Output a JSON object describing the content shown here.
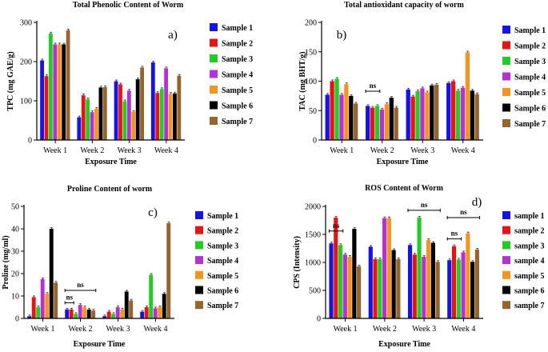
{
  "chart_data": [
    {
      "type": "bar",
      "panel": "a)",
      "title": "Total Phenolic Content of Worm",
      "xlabel": "Exposure Time",
      "ylabel": "TPC (mg GAE/g)",
      "ylim": [
        0,
        300
      ],
      "yticks": [
        "0",
        "100",
        "200",
        "300"
      ],
      "categories": [
        "Week 1",
        "Week 2",
        "Week 3",
        "Week 4"
      ],
      "series": [
        {
          "name": "Sample 1",
          "color": "#1414e6",
          "values": [
            203,
            58,
            150,
            198
          ]
        },
        {
          "name": "Sample 2",
          "color": "#e61414",
          "values": [
            163,
            114,
            142,
            120
          ]
        },
        {
          "name": "Sample 3",
          "color": "#22cc22",
          "values": [
            272,
            104,
            99,
            130
          ]
        },
        {
          "name": "Sample 4",
          "color": "#b432d2",
          "values": [
            244,
            71,
            126,
            183
          ]
        },
        {
          "name": "Sample 5",
          "color": "#f5941e",
          "values": [
            244,
            80,
            72,
            118
          ]
        },
        {
          "name": "Sample 6",
          "color": "#000000",
          "values": [
            244,
            134,
            155,
            119
          ]
        },
        {
          "name": "Sample 7",
          "color": "#96642d",
          "values": [
            280,
            135,
            185,
            164
          ]
        }
      ],
      "annotations": []
    },
    {
      "type": "bar",
      "panel": "b)",
      "title": "Total antioxidant capacity of worm",
      "xlabel": "Exposure Time",
      "ylabel": "TAC (mg BHT/g)",
      "ylim": [
        0,
        200
      ],
      "yticks": [
        "0",
        "50",
        "100",
        "150",
        "200"
      ],
      "categories": [
        "Week 1",
        "Week 2",
        "Week 3",
        "Week 4"
      ],
      "series": [
        {
          "name": "Sample 1",
          "color": "#1414e6",
          "values": [
            77,
            58,
            86,
            97
          ]
        },
        {
          "name": "Sample 2",
          "color": "#e61414",
          "values": [
            100,
            55,
            74,
            100
          ]
        },
        {
          "name": "Sample 3",
          "color": "#22cc22",
          "values": [
            104,
            58,
            83,
            84
          ]
        },
        {
          "name": "Sample 4",
          "color": "#b432d2",
          "values": [
            77,
            52,
            88,
            89
          ]
        },
        {
          "name": "Sample 5",
          "color": "#f5941e",
          "values": [
            95,
            61,
            81,
            149
          ]
        },
        {
          "name": "Sample 6",
          "color": "#000000",
          "values": [
            75,
            72,
            93,
            84
          ]
        },
        {
          "name": "Sample 7",
          "color": "#96642d",
          "values": [
            62,
            55,
            94,
            78
          ]
        }
      ],
      "annotations": [
        {
          "text": "ns",
          "category": 1,
          "from_series": 0,
          "to_series": 2,
          "y": 83
        }
      ]
    },
    {
      "type": "bar",
      "panel": "c)",
      "title": "Proline Content of worm",
      "xlabel": "Exposure Time",
      "ylabel": "Proline (mg/ml)",
      "ylim": [
        0,
        50
      ],
      "yticks": [
        "0",
        "10",
        "20",
        "30",
        "40",
        "50"
      ],
      "categories": [
        "Week 1",
        "Week 2",
        "Week 3",
        "Week 4"
      ],
      "series": [
        {
          "name": "Sample 1",
          "color": "#1414e6",
          "values": [
            1,
            4,
            1,
            3
          ]
        },
        {
          "name": "Sample 2",
          "color": "#e61414",
          "values": [
            9.5,
            4,
            3,
            5
          ]
        },
        {
          "name": "Sample 3",
          "color": "#22cc22",
          "values": [
            5,
            2,
            2,
            19.5
          ]
        },
        {
          "name": "Sample 4",
          "color": "#b432d2",
          "values": [
            17.5,
            6,
            5,
            4.5
          ]
        },
        {
          "name": "Sample 5",
          "color": "#f5941e",
          "values": [
            11,
            5,
            4,
            5
          ]
        },
        {
          "name": "Sample 6",
          "color": "#000000",
          "values": [
            40,
            4,
            12,
            11
          ]
        },
        {
          "name": "Sample 7",
          "color": "#96642d",
          "values": [
            16,
            3.5,
            8,
            42.5
          ]
        }
      ],
      "annotations": [
        {
          "text": "ns",
          "category": 1,
          "from_series": 0,
          "to_series": 1,
          "y": 7
        },
        {
          "text": "ns",
          "category": 1,
          "from_series": 0,
          "to_series": 6,
          "y": 12.5
        }
      ]
    },
    {
      "type": "bar",
      "panel": "d)",
      "title": "ROS Content of Worm",
      "xlabel": "Exposure Time",
      "ylabel": "CPS (Intensity)",
      "ylim": [
        0,
        2000
      ],
      "yticks": [
        "0",
        "500",
        "1000",
        "1500",
        "2000"
      ],
      "categories": [
        "Week 1",
        "Week 2",
        "Week 3",
        "Week 4"
      ],
      "series": [
        {
          "name": "sample 1",
          "color": "#1414e6",
          "values": [
            1340,
            1280,
            1310,
            1040
          ]
        },
        {
          "name": "sample 2",
          "color": "#e61414",
          "values": [
            1800,
            1060,
            1140,
            1290
          ]
        },
        {
          "name": "sample 3",
          "color": "#22cc22",
          "values": [
            1310,
            1060,
            1800,
            1050
          ]
        },
        {
          "name": "sample 4",
          "color": "#b432d2",
          "values": [
            1140,
            1790,
            1100,
            1180
          ]
        },
        {
          "name": "sample 5",
          "color": "#f5941e",
          "values": [
            1100,
            1790,
            1400,
            1520
          ]
        },
        {
          "name": "sample 6",
          "color": "#000000",
          "values": [
            1600,
            1220,
            1350,
            1010
          ]
        },
        {
          "name": "sample 7",
          "color": "#96642d",
          "values": [
            930,
            1060,
            1010,
            1230
          ]
        }
      ],
      "annotations": [
        {
          "text": "ns",
          "category": 0,
          "from_series": 0,
          "to_series": 2,
          "y": 1560
        },
        {
          "text": "ns",
          "category": 2,
          "from_series": 0,
          "to_series": 6,
          "y": 1930
        },
        {
          "text": "ns",
          "category": 3,
          "from_series": 0,
          "to_series": 2,
          "y": 1420
        },
        {
          "text": "ns",
          "category": 3,
          "from_series": 0,
          "to_series": 6,
          "y": 1800
        }
      ]
    }
  ]
}
